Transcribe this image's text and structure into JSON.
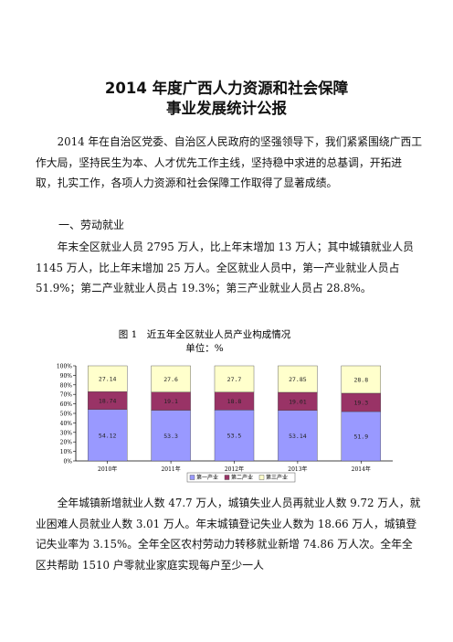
{
  "document": {
    "title_line1": "2014 年度广西人力资源和社会保障",
    "title_line2": "事业发展统计公报",
    "intro": "2014 年在自治区党委、自治区人民政府的坚强领导下，我们紧紧围绕广西工作大局，坚持民生为本、人才优先工作主线，坚持稳中求进的总基调，开拓进取，扎实工作，各项人力资源和社会保障工作取得了显著成绩。",
    "section1_heading": "一、劳动就业",
    "section1_para1": "年末全区就业人员 2795 万人，比上年末增加 13 万人；其中城镇就业人员 1145 万人，比上年末增加 25 万人。全区就业人员中，第一产业就业人员占 51.9%；第二产业就业人员占 19.3%；第三产业就业人员占 28.8%。",
    "section1_para2": "全年城镇新增就业人数 47.7 万人，城镇失业人员再就业人数 9.72 万人，就业困难人员就业人数 3.01 万人。年末城镇登记失业人数为 18.66 万人，城镇登记失业率为 3.15%。全年全区农村劳动力转移就业新增 74.86 万人次。全年全区共帮助 1510 户零就业家庭实现每户至少一人"
  },
  "chart_data": {
    "type": "bar",
    "stacked": true,
    "title": "图 1　近五年全区就业人员产业构成情况",
    "subtitle": "单位：%",
    "categories": [
      "2010年",
      "2011年",
      "2012年",
      "2013年",
      "2014年"
    ],
    "series": [
      {
        "name": "第一产业",
        "values": [
          54.12,
          53.3,
          53.5,
          53.14,
          51.9
        ],
        "labels": [
          "54.12",
          "53.3",
          "53.5",
          "53.14",
          "51.9"
        ],
        "color": "#9999ff"
      },
      {
        "name": "第二产业",
        "values": [
          18.74,
          19.1,
          18.8,
          19.01,
          19.3
        ],
        "labels": [
          "18.74",
          "19.1",
          "18.8",
          "19.01",
          "19.3"
        ],
        "color": "#993366"
      },
      {
        "name": "第三产业",
        "values": [
          27.14,
          27.6,
          27.7,
          27.85,
          28.8
        ],
        "labels": [
          "27.14",
          "27.6",
          "27.7",
          "27.85",
          "28.8"
        ],
        "color": "#ffffcc"
      }
    ],
    "ylim": [
      0,
      100
    ],
    "yticks": [
      "0%",
      "10%",
      "20%",
      "30%",
      "40%",
      "50%",
      "60%",
      "70%",
      "80%",
      "90%",
      "100%"
    ],
    "grid": false,
    "legend_position": "bottom"
  }
}
